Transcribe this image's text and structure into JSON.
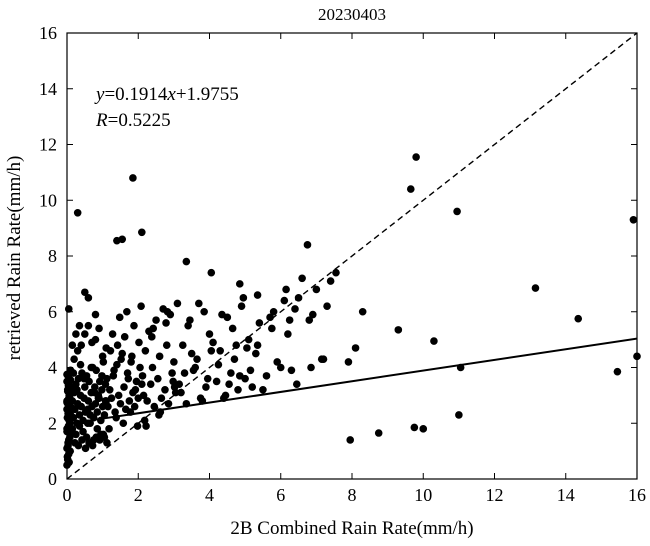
{
  "chart_data": {
    "type": "scatter",
    "title": "20230403",
    "xlabel": "2B Combined Rain Rate(mm/h)",
    "ylabel": "retrieved Rain Rate(mm/h)",
    "xlim": [
      0,
      16
    ],
    "ylim": [
      0,
      16
    ],
    "xticks": [
      "0",
      "2",
      "4",
      "6",
      "8",
      "10",
      "12",
      "14",
      "16"
    ],
    "yticks": [
      "0",
      "2",
      "4",
      "6",
      "8",
      "10",
      "12",
      "14",
      "16"
    ],
    "grid": false,
    "legend": "none",
    "annotation": {
      "equation_y": "y",
      "equation_eq": "=0.1914",
      "equation_x": "x",
      "equation_rest": "+1.9755",
      "r_label": "R",
      "r_value": "=0.5225"
    },
    "fit_line": {
      "slope": 0.1914,
      "intercept": 1.9755,
      "style": "solid"
    },
    "reference_line": {
      "slope": 1,
      "intercept": 0,
      "style": "dashed"
    },
    "marker_color": "#000000",
    "series": [
      {
        "x": [
          0.0,
          0.02,
          0.05,
          0.0,
          0.03,
          0.08,
          0.0,
          0.04,
          0.06,
          0.1,
          0.0,
          0.02,
          0.05,
          0.07,
          0.12,
          0.0,
          0.03,
          0.08,
          0.01,
          0.04,
          0.09,
          0.0,
          0.06,
          0.02,
          0.11,
          0.0,
          0.05,
          0.03,
          0.13,
          0.0,
          0.07,
          0.02,
          0.04,
          0.1,
          0.0,
          0.06,
          0.01,
          0.09,
          0.03,
          0.05,
          0.15,
          0.18,
          0.2,
          0.22,
          0.25,
          0.28,
          0.3,
          0.32,
          0.35,
          0.38,
          0.4,
          0.42,
          0.45,
          0.48,
          0.5,
          0.52,
          0.55,
          0.58,
          0.6,
          0.62,
          0.65,
          0.68,
          0.7,
          0.72,
          0.75,
          0.78,
          0.8,
          0.82,
          0.85,
          0.88,
          0.9,
          0.92,
          0.95,
          0.98,
          1.0,
          1.02,
          1.05,
          1.08,
          1.1,
          1.12,
          0.15,
          0.2,
          0.25,
          0.3,
          0.35,
          0.4,
          0.45,
          0.5,
          0.55,
          0.6,
          0.65,
          0.7,
          0.75,
          0.8,
          0.85,
          0.9,
          0.95,
          1.0,
          1.05,
          1.1,
          0.18,
          0.28,
          0.38,
          0.48,
          0.58,
          0.68,
          0.78,
          0.88,
          0.98,
          1.08,
          0.22,
          0.32,
          0.42,
          0.52,
          0.62,
          0.72,
          0.82,
          0.92,
          1.02,
          1.12,
          1.15,
          1.2,
          1.25,
          1.3,
          1.35,
          1.4,
          1.45,
          1.5,
          1.55,
          1.6,
          1.65,
          1.7,
          1.75,
          1.8,
          1.85,
          1.9,
          1.95,
          2.0,
          2.05,
          2.1,
          1.18,
          1.28,
          1.38,
          1.48,
          1.58,
          1.68,
          1.78,
          1.88,
          1.98,
          2.08,
          1.22,
          1.32,
          1.42,
          1.52,
          1.62,
          1.72,
          1.82,
          1.92,
          2.02,
          2.12,
          2.15,
          2.2,
          2.25,
          2.3,
          2.35,
          2.4,
          2.45,
          2.5,
          2.55,
          2.6,
          2.65,
          2.7,
          2.75,
          2.8,
          2.85,
          2.9,
          2.95,
          3.0,
          3.05,
          3.1,
          2.18,
          2.38,
          2.58,
          2.78,
          2.98,
          2.22,
          2.42,
          2.62,
          2.82,
          3.02,
          3.15,
          3.25,
          3.35,
          3.45,
          3.55,
          3.65,
          3.75,
          3.85,
          3.95,
          4.05,
          3.2,
          3.4,
          3.6,
          3.8,
          4.0,
          3.3,
          3.5,
          3.7,
          3.9,
          4.1,
          4.2,
          4.3,
          4.4,
          4.5,
          4.6,
          4.7,
          4.8,
          4.9,
          5.0,
          5.1,
          4.25,
          4.45,
          4.65,
          4.85,
          5.05,
          4.35,
          4.55,
          4.75,
          4.95,
          5.15,
          5.2,
          5.4,
          5.6,
          5.8,
          6.0,
          6.2,
          5.3,
          5.5,
          5.7,
          5.9,
          6.1,
          6.3,
          5.35,
          5.75,
          6.15,
          6.4,
          6.6,
          6.8,
          7.0,
          7.2,
          7.4,
          6.5,
          6.9,
          7.3,
          6.45,
          6.85,
          0.3,
          1.4,
          1.55,
          2.1,
          1.85,
          3.35,
          4.05,
          4.85,
          5.35,
          6.25,
          6.75,
          7.55,
          7.15,
          8.3,
          8.1,
          7.9,
          9.3,
          10.0,
          10.3,
          10.95,
          9.65,
          9.8,
          11.0,
          13.15,
          14.35,
          15.45,
          15.9,
          16.0,
          8.75,
          9.75,
          11.05,
          7.95,
          0.05,
          0.35,
          0.6,
          0.15,
          0.5,
          0.25,
          0.8,
          0.1
        ],
        "y": [
          0.5,
          0.7,
          0.9,
          1.1,
          1.3,
          1.5,
          1.7,
          1.9,
          2.1,
          2.3,
          2.5,
          2.7,
          2.9,
          3.1,
          3.3,
          3.5,
          3.7,
          2.0,
          2.2,
          2.4,
          2.6,
          2.8,
          3.0,
          3.2,
          1.6,
          1.8,
          2.15,
          2.35,
          2.55,
          2.75,
          2.95,
          3.15,
          3.35,
          3.55,
          3.75,
          0.6,
          0.8,
          1.0,
          1.2,
          1.4,
          2.8,
          2.2,
          3.1,
          2.5,
          3.4,
          2.0,
          2.7,
          3.6,
          2.3,
          3.0,
          2.6,
          3.8,
          2.1,
          2.9,
          3.3,
          2.4,
          3.7,
          2.0,
          2.8,
          3.5,
          2.3,
          3.1,
          2.6,
          4.0,
          2.2,
          3.3,
          2.7,
          3.9,
          2.4,
          3.0,
          2.9,
          3.5,
          2.1,
          3.2,
          2.6,
          4.2,
          2.3,
          3.4,
          2.8,
          3.6,
          1.8,
          4.3,
          1.6,
          4.6,
          1.9,
          4.8,
          1.7,
          5.2,
          1.5,
          5.5,
          2.0,
          4.9,
          1.4,
          5.0,
          1.8,
          5.4,
          1.6,
          4.4,
          1.5,
          4.7,
          3.8,
          3.2,
          4.1,
          3.6,
          2.5,
          4.0,
          3.1,
          2.9,
          3.7,
          2.8,
          1.3,
          1.2,
          1.4,
          1.1,
          1.3,
          1.2,
          1.5,
          1.4,
          1.6,
          1.3,
          2.6,
          3.2,
          2.9,
          3.7,
          2.4,
          4.1,
          3.0,
          2.7,
          4.5,
          3.3,
          2.5,
          3.8,
          2.8,
          4.2,
          3.1,
          2.6,
          3.5,
          2.9,
          4.0,
          3.4,
          1.8,
          5.2,
          2.2,
          5.8,
          2.0,
          6.0,
          2.4,
          5.5,
          1.9,
          6.2,
          4.6,
          3.9,
          4.8,
          4.3,
          5.1,
          3.6,
          4.4,
          3.2,
          4.9,
          3.7,
          3.0,
          4.6,
          2.8,
          5.3,
          3.4,
          4.0,
          2.6,
          5.7,
          3.6,
          4.4,
          2.9,
          6.1,
          3.2,
          4.8,
          2.7,
          5.9,
          3.8,
          4.2,
          3.1,
          6.3,
          2.1,
          5.1,
          2.3,
          5.6,
          3.5,
          1.9,
          5.4,
          2.4,
          6.0,
          3.3,
          3.4,
          4.8,
          2.7,
          5.7,
          3.9,
          4.3,
          2.9,
          6.0,
          3.6,
          4.6,
          3.1,
          5.5,
          4.0,
          2.8,
          5.2,
          3.8,
          4.5,
          6.3,
          3.3,
          4.9,
          3.5,
          4.6,
          2.9,
          5.8,
          3.8,
          4.3,
          3.2,
          6.2,
          3.6,
          5.0,
          4.1,
          3.0,
          5.4,
          3.7,
          4.7,
          5.9,
          3.4,
          4.8,
          6.5,
          3.9,
          3.3,
          5.6,
          3.7,
          6.0,
          4.0,
          5.2,
          4.5,
          3.2,
          5.8,
          4.2,
          6.4,
          3.9,
          4.8,
          5.4,
          6.8,
          6.1,
          7.2,
          5.7,
          6.8,
          4.3,
          7.1,
          6.5,
          5.9,
          6.2,
          3.4,
          4.0,
          9.55,
          8.55,
          8.6,
          8.85,
          10.8,
          7.8,
          7.4,
          7.0,
          6.6,
          5.7,
          8.4,
          7.4,
          4.3,
          6.0,
          4.7,
          4.2,
          5.35,
          1.8,
          4.95,
          9.6,
          10.4,
          11.55,
          2.3,
          6.85,
          5.75,
          3.85,
          9.3,
          4.4,
          1.65,
          1.85,
          4.0,
          1.4,
          6.1,
          5.5,
          6.5,
          4.8,
          6.7,
          5.2,
          5.9,
          3.9
        ]
      }
    ]
  }
}
